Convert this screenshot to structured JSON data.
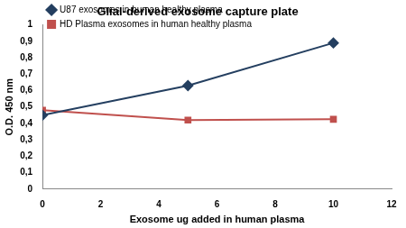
{
  "chart_data": {
    "type": "line",
    "title": "Glial-derived exosome capture plate",
    "x_label": "Exosome ug added in human plasma",
    "y_label": "O.D. 450 nm",
    "xlim": [
      0,
      12
    ],
    "xticks": [
      0,
      2,
      4,
      6,
      8,
      10,
      12
    ],
    "ylim": [
      0,
      1
    ],
    "yticks": [
      0,
      {
        "value": 0.1,
        "label": "0,1"
      },
      {
        "value": 0.2,
        "label": "0,2"
      },
      {
        "value": 0.3,
        "label": "0,3"
      },
      {
        "value": 0.4,
        "label": "0,4"
      },
      {
        "value": 0.5,
        "label": "0,5"
      },
      {
        "value": 0.6,
        "label": "0,6"
      },
      {
        "value": 0.7,
        "label": "0,7"
      },
      {
        "value": 0.8,
        "label": "0,8"
      },
      {
        "value": 0.9,
        "label": "0,9"
      },
      1
    ],
    "grid": false,
    "legend": "upper left",
    "x": [
      0,
      5,
      10
    ],
    "series": [
      {
        "name": "U87 exosomes in human healthy plasma",
        "color": "#243f60",
        "marker": "diamond",
        "values": [
          0.45,
          0.63,
          0.89
        ]
      },
      {
        "name": "HD Plasma exosomes in human healthy plasma",
        "color": "#c0504d",
        "marker": "square",
        "values": [
          0.48,
          0.42,
          0.425
        ]
      }
    ]
  }
}
